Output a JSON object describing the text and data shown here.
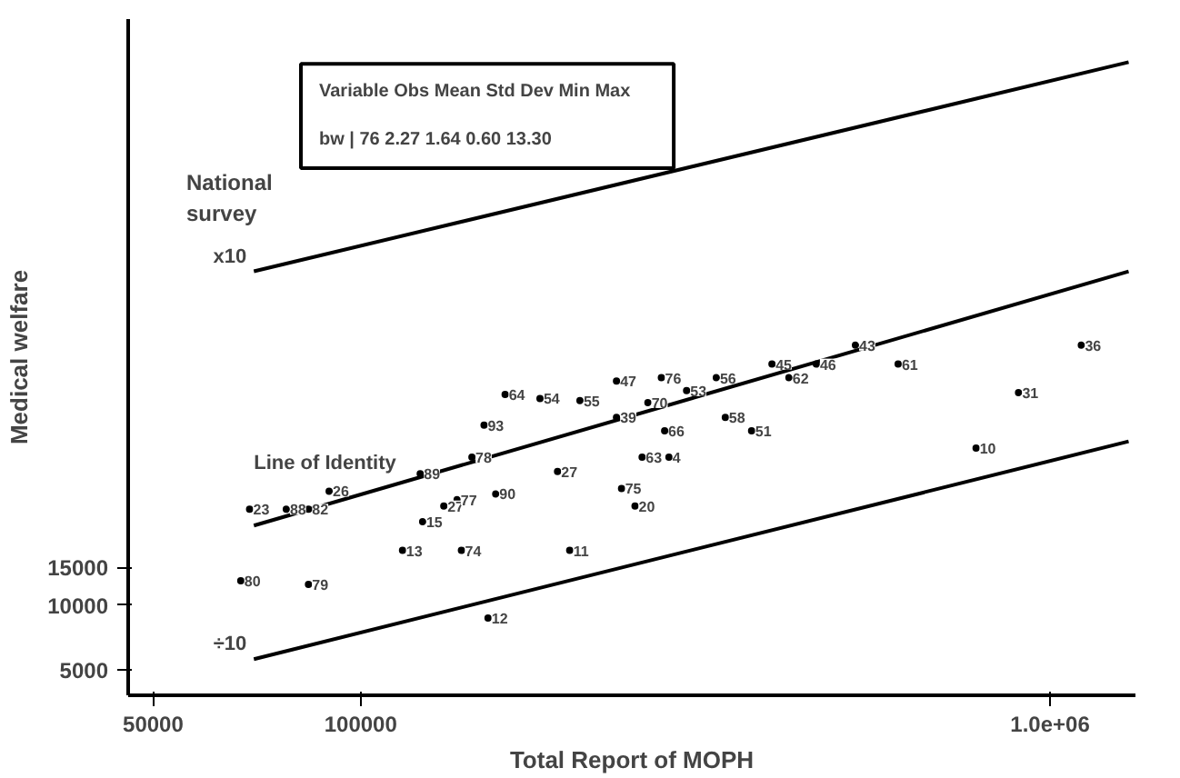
{
  "chart_data": {
    "type": "scatter",
    "xlabel": "Total Report of MOPH",
    "ylabel": "Medical welfare",
    "log": "xy",
    "grid": false,
    "xlim": [
      46000,
      1330000
    ],
    "xticks": [
      50000,
      100000,
      {
        "value": 1000000,
        "label": "1.0e+06"
      }
    ],
    "ylim": [
      3800,
      5400000
    ],
    "yticks": [
      5000,
      10000,
      15000
    ],
    "annotations": [
      "National survey",
      "Variable  Obs  Mean  Std Dev  Min  Max",
      "bw  |  76  2.27  1.64  0.60  13.30",
      {
        "text": "x10",
        "x": 70000,
        "y": 360000
      },
      {
        "text": "Line of Identity",
        "x": 70000,
        "y": 23500
      },
      {
        "text": "÷10",
        "x": 70000,
        "y": 5600
      },
      {
        "text": "23",
        "x": 69000,
        "y": 28000
      },
      {
        "text": "88",
        "x": 78000,
        "y": 28000
      },
      {
        "text": "82",
        "x": 84000,
        "y": 28000
      },
      {
        "text": "26",
        "x": 90000,
        "y": 34000
      },
      {
        "text": "80",
        "x": 67000,
        "y": 13000
      },
      {
        "text": "79",
        "x": 84000,
        "y": 12500
      },
      {
        "text": "89",
        "x": 122000,
        "y": 41000
      },
      {
        "text": "27",
        "x": 132000,
        "y": 29000
      },
      {
        "text": "77",
        "x": 138000,
        "y": 31000
      },
      {
        "text": "15",
        "x": 123000,
        "y": 24500
      },
      {
        "text": "13",
        "x": 115000,
        "y": 18000
      },
      {
        "text": "74",
        "x": 140000,
        "y": 18000
      },
      {
        "text": "78",
        "x": 145000,
        "y": 49000
      },
      {
        "text": "90",
        "x": 157000,
        "y": 33000
      },
      {
        "text": "93",
        "x": 151000,
        "y": 69000
      },
      {
        "text": "64",
        "x": 162000,
        "y": 96000
      },
      {
        "text": "54",
        "x": 182000,
        "y": 92000
      },
      {
        "text": "55",
        "x": 208000,
        "y": 90000
      },
      {
        "text": "47",
        "x": 235000,
        "y": 111000
      },
      {
        "text": "27",
        "x": 193000,
        "y": 42000
      },
      {
        "text": "11",
        "x": 201000,
        "y": 18000
      },
      {
        "text": "12",
        "x": 153000,
        "y": 8700
      },
      {
        "text": "39",
        "x": 235000,
        "y": 75000
      },
      {
        "text": "70",
        "x": 261000,
        "y": 88000
      },
      {
        "text": "76",
        "x": 273000,
        "y": 115000
      },
      {
        "text": "53",
        "x": 297000,
        "y": 100000
      },
      {
        "text": "56",
        "x": 328000,
        "y": 115000
      },
      {
        "text": "66",
        "x": 276000,
        "y": 65000
      },
      {
        "text": "63",
        "x": 256000,
        "y": 49000
      },
      {
        "text": "4",
        "x": 280000,
        "y": 49000
      },
      {
        "text": "75",
        "x": 239000,
        "y": 35000
      },
      {
        "text": "20",
        "x": 250000,
        "y": 29000
      },
      {
        "text": "58",
        "x": 338000,
        "y": 75000
      },
      {
        "text": "51",
        "x": 369000,
        "y": 65000
      },
      {
        "text": "45",
        "x": 395000,
        "y": 133000
      },
      {
        "text": "62",
        "x": 418000,
        "y": 115000
      },
      {
        "text": "46",
        "x": 458000,
        "y": 133000
      },
      {
        "text": "43",
        "x": 522000,
        "y": 163000
      },
      {
        "text": "61",
        "x": 602000,
        "y": 133000
      },
      {
        "text": "36",
        "x": 1110000,
        "y": 163000
      },
      {
        "text": "31",
        "x": 900000,
        "y": 98000
      },
      {
        "text": "10",
        "x": 781000,
        "y": 54000
      }
    ],
    "series": [
      {
        "type": "line",
        "color": "#000000",
        "x": [
          70000,
          1300000
        ],
        "values": [
          360000,
          3400000
        ]
      },
      {
        "type": "line",
        "color": "#000000",
        "x": [
          70000,
          1300000
        ],
        "values": [
          23500,
          360000
        ]
      },
      {
        "type": "line",
        "color": "#000000",
        "x": [
          70000,
          1300000
        ],
        "values": [
          5600,
          58000
        ]
      },
      {
        "color": "#000000",
        "marker": "circle",
        "x": [
          69000,
          78000,
          84000,
          90000,
          67000,
          84000,
          122000,
          132000,
          138000,
          123000,
          115000,
          140000,
          145000,
          157000,
          151000,
          162000,
          182000,
          208000,
          235000,
          193000,
          201000,
          153000,
          235000,
          261000,
          273000,
          297000,
          328000,
          276000,
          256000,
          280000,
          239000,
          250000,
          338000,
          369000,
          395000,
          418000,
          458000,
          522000,
          602000,
          1110000,
          900000,
          781000
        ],
        "values": [
          28000,
          28000,
          28000,
          34000,
          13000,
          12500,
          41000,
          29000,
          31000,
          24500,
          18000,
          18000,
          49000,
          33000,
          69000,
          96000,
          92000,
          90000,
          111000,
          42000,
          18000,
          8700,
          75000,
          88000,
          115000,
          100000,
          115000,
          65000,
          49000,
          49000,
          35000,
          29000,
          75000,
          65000,
          133000,
          115000,
          133000,
          163000,
          133000,
          163000,
          98000,
          54000
        ]
      }
    ]
  }
}
